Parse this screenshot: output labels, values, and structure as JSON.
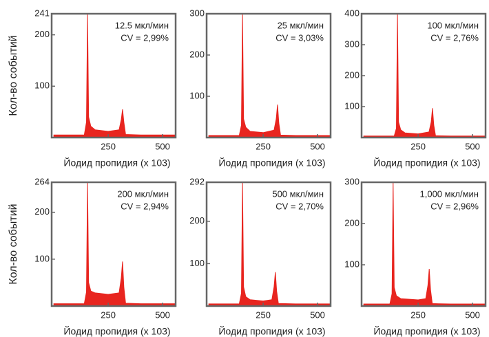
{
  "row_labels": [
    "Кол-во событий",
    "Кол-во событий"
  ],
  "chart_data": [
    {
      "type": "area",
      "color": "#e8251f",
      "annotations": [
        "12.5 мкл/мин",
        "CV = 2,99%"
      ],
      "xlabel": "Йодид пропидия  (x 103)",
      "x": [
        0,
        140,
        150,
        155,
        160,
        170,
        190,
        250,
        300,
        310,
        316,
        322,
        330,
        400,
        560
      ],
      "values": [
        5,
        5,
        30,
        241,
        40,
        22,
        15,
        12,
        15,
        35,
        55,
        30,
        6,
        5,
        5
      ],
      "xlim": [
        -10,
        560
      ],
      "xticks": [
        250,
        500
      ],
      "ylim": [
        0,
        241
      ],
      "yticks": [
        100,
        200,
        241
      ]
    },
    {
      "type": "area",
      "color": "#e8251f",
      "annotations": [
        "25 мкл/мин",
        "CV = 3,03%"
      ],
      "xlabel": "Йодид пропидия  (x 103)",
      "x": [
        0,
        140,
        150,
        155,
        160,
        170,
        190,
        250,
        300,
        310,
        316,
        322,
        330,
        400,
        560
      ],
      "values": [
        5,
        5,
        30,
        300,
        45,
        25,
        15,
        12,
        18,
        45,
        80,
        35,
        6,
        5,
        5
      ],
      "xlim": [
        -10,
        560
      ],
      "xticks": [
        250,
        500
      ],
      "ylim": [
        0,
        300
      ],
      "yticks": [
        100,
        200,
        300
      ]
    },
    {
      "type": "area",
      "color": "#e8251f",
      "annotations": [
        "100 мкл/мин",
        "CV = 2,76%"
      ],
      "xlabel": "Йодид пропидия  (x 103)",
      "x": [
        0,
        140,
        150,
        155,
        160,
        170,
        190,
        250,
        300,
        310,
        316,
        322,
        330,
        400,
        560
      ],
      "values": [
        5,
        5,
        30,
        400,
        50,
        25,
        15,
        12,
        18,
        50,
        95,
        40,
        6,
        5,
        5
      ],
      "xlim": [
        -10,
        560
      ],
      "xticks": [
        250,
        500
      ],
      "ylim": [
        0,
        400
      ],
      "yticks": [
        100,
        200,
        300,
        400
      ]
    },
    {
      "type": "area",
      "color": "#e8251f",
      "annotations": [
        "200 мкл/мин",
        "CV = 2,94%"
      ],
      "xlabel": "Йодид пропидия  (x 103)",
      "x": [
        0,
        140,
        150,
        155,
        160,
        170,
        190,
        250,
        300,
        310,
        316,
        322,
        330,
        400,
        560
      ],
      "values": [
        5,
        5,
        30,
        264,
        50,
        32,
        28,
        25,
        28,
        60,
        95,
        40,
        6,
        5,
        5
      ],
      "xlim": [
        -10,
        560
      ],
      "xticks": [
        250,
        500
      ],
      "ylim": [
        0,
        264
      ],
      "yticks": [
        100,
        200,
        264
      ]
    },
    {
      "type": "area",
      "color": "#e8251f",
      "annotations": [
        "500 мкл/мин",
        "CV = 2,70%"
      ],
      "xlabel": "Йодид пропидия  (x 103)",
      "x": [
        0,
        140,
        150,
        155,
        160,
        170,
        190,
        250,
        290,
        300,
        306,
        312,
        320,
        400,
        560
      ],
      "values": [
        5,
        5,
        30,
        292,
        45,
        22,
        15,
        12,
        15,
        45,
        80,
        35,
        6,
        5,
        5
      ],
      "xlim": [
        -10,
        560
      ],
      "xticks": [
        250,
        500
      ],
      "ylim": [
        0,
        292
      ],
      "yticks": [
        100,
        200,
        292
      ]
    },
    {
      "type": "area",
      "color": "#e8251f",
      "annotations": [
        "1,000 мкл/мин",
        "CV = 2,96%"
      ],
      "xlabel": "Йодид пропидия  (x 103)",
      "x": [
        0,
        120,
        130,
        135,
        140,
        150,
        170,
        250,
        285,
        295,
        301,
        307,
        315,
        400,
        560
      ],
      "values": [
        5,
        5,
        30,
        300,
        45,
        25,
        18,
        15,
        18,
        50,
        90,
        40,
        6,
        5,
        5
      ],
      "xlim": [
        -10,
        560
      ],
      "xticks": [
        250,
        500
      ],
      "ylim": [
        0,
        300
      ],
      "yticks": [
        100,
        200,
        300
      ]
    }
  ]
}
